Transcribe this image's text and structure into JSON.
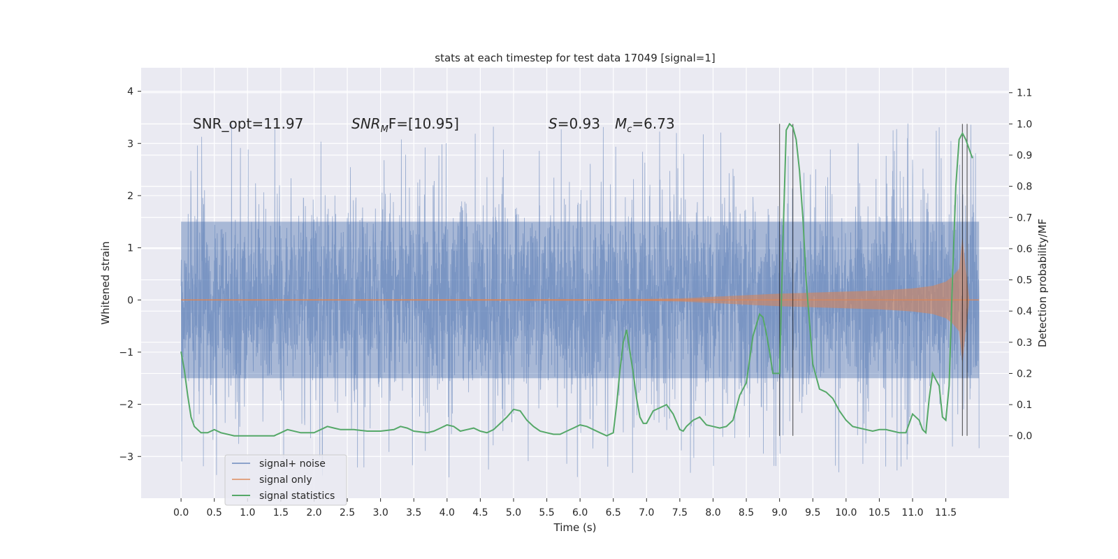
{
  "chart_data": {
    "type": "line",
    "title": "stats at each timestep for test data 17049 [signal=1]",
    "xlabel": "Time (s)",
    "ylabel": "Whitened strain",
    "ylabel_right": "Detection probability/MF",
    "xlim": [
      -0.6,
      12.45
    ],
    "ylim": [
      -3.8,
      4.45
    ],
    "ylim_right": [
      -0.2,
      1.18
    ],
    "x_ticks": [
      0.0,
      0.5,
      1.0,
      1.5,
      2.0,
      2.5,
      3.0,
      3.5,
      4.0,
      4.5,
      5.0,
      5.5,
      6.0,
      6.5,
      7.0,
      7.5,
      8.0,
      8.5,
      9.0,
      9.5,
      10.0,
      10.5,
      11.0,
      11.5
    ],
    "x_tick_labels": [
      "0.0",
      "0.5",
      "1.0",
      "1.5",
      "2.0",
      "2.5",
      "3.0",
      "3.5",
      "4.0",
      "4.5",
      "5.0",
      "5.5",
      "6.0",
      "6.5",
      "7.0",
      "7.5",
      "8.0",
      "8.5",
      "9.0",
      "9.5",
      "10.0",
      "10.5",
      "11.0",
      "11.5"
    ],
    "y_ticks": [
      -3,
      -2,
      -1,
      0,
      1,
      2,
      3,
      4
    ],
    "y_tick_labels": [
      "−3",
      "−2",
      "−1",
      "0",
      "1",
      "2",
      "3",
      "4"
    ],
    "y_ticks_right": [
      0.0,
      0.1,
      0.2,
      0.3,
      0.4,
      0.5,
      0.6,
      0.7,
      0.8,
      0.9,
      1.0,
      1.1
    ],
    "y_tick_labels_right": [
      "0.0",
      "0.1",
      "0.2",
      "0.3",
      "0.4",
      "0.5",
      "0.6",
      "0.7",
      "0.8",
      "0.9",
      "1.0",
      "1.1"
    ],
    "grid": true,
    "legend_position": "lower-left",
    "annotations": [
      {
        "text": "SNR_opt=11.97",
        "x": 0.2,
        "y": 3.3
      },
      {
        "text": "SNR",
        "sub": "M",
        "text_after": "F=[10.95]",
        "italic": true,
        "x": 2.6,
        "y": 3.3
      },
      {
        "text": "S",
        "text_after": "=0.93",
        "italic": true,
        "x": 5.6,
        "y": 3.3
      },
      {
        "text": "M",
        "sub": "c",
        "text_after": "=6.73",
        "italic": true,
        "x": 6.6,
        "y": 3.3
      }
    ],
    "series": [
      {
        "name": "signal+ noise",
        "color": "#4c72b0",
        "axis": "left",
        "description_env": {
          "t_range": [
            0.0,
            12.0
          ],
          "core_amplitude": 1.5,
          "spike_max": 4.1,
          "spike_min": -3.4
        }
      },
      {
        "name": "signal only",
        "color": "#dd8452",
        "axis": "left",
        "envelope": {
          "t": [
            0.0,
            6.0,
            7.0,
            7.5,
            8.0,
            8.5,
            9.0,
            9.5,
            10.0,
            10.5,
            11.0,
            11.3,
            11.5,
            11.6,
            11.7,
            11.75,
            11.8,
            11.85
          ],
          "amp": [
            0.01,
            0.015,
            0.02,
            0.03,
            0.06,
            0.09,
            0.12,
            0.14,
            0.16,
            0.18,
            0.22,
            0.27,
            0.35,
            0.45,
            0.6,
            1.2,
            0.6,
            0.05
          ]
        }
      },
      {
        "name": "signal statistics",
        "color": "#55a868",
        "axis": "right",
        "x": [
          0.0,
          0.05,
          0.1,
          0.15,
          0.2,
          0.3,
          0.4,
          0.5,
          0.6,
          0.8,
          1.0,
          1.2,
          1.4,
          1.5,
          1.6,
          1.8,
          2.0,
          2.1,
          2.2,
          2.3,
          2.4,
          2.5,
          2.6,
          2.8,
          3.0,
          3.2,
          3.3,
          3.4,
          3.5,
          3.7,
          3.8,
          3.9,
          4.0,
          4.1,
          4.2,
          4.3,
          4.4,
          4.5,
          4.6,
          4.7,
          4.8,
          4.9,
          5.0,
          5.1,
          5.2,
          5.3,
          5.4,
          5.5,
          5.6,
          5.7,
          5.8,
          5.9,
          6.0,
          6.1,
          6.2,
          6.3,
          6.4,
          6.5,
          6.55,
          6.6,
          6.65,
          6.7,
          6.75,
          6.8,
          6.85,
          6.9,
          6.95,
          7.0,
          7.1,
          7.2,
          7.3,
          7.4,
          7.5,
          7.55,
          7.6,
          7.7,
          7.8,
          7.9,
          8.0,
          8.1,
          8.2,
          8.3,
          8.4,
          8.5,
          8.6,
          8.7,
          8.75,
          8.8,
          8.85,
          8.9,
          9.0,
          9.05,
          9.1,
          9.15,
          9.2,
          9.25,
          9.3,
          9.35,
          9.4,
          9.5,
          9.6,
          9.7,
          9.8,
          9.9,
          10.0,
          10.1,
          10.2,
          10.3,
          10.4,
          10.5,
          10.6,
          10.7,
          10.8,
          10.9,
          11.0,
          11.1,
          11.15,
          11.2,
          11.25,
          11.3,
          11.4,
          11.45,
          11.5,
          11.55,
          11.6,
          11.65,
          11.7,
          11.75,
          11.8,
          11.85,
          11.9
        ],
        "y": [
          0.27,
          0.21,
          0.13,
          0.06,
          0.03,
          0.01,
          0.01,
          0.02,
          0.01,
          0.0,
          0.0,
          0.0,
          0.0,
          0.01,
          0.02,
          0.01,
          0.01,
          0.02,
          0.03,
          0.025,
          0.02,
          0.02,
          0.02,
          0.015,
          0.015,
          0.02,
          0.03,
          0.025,
          0.015,
          0.01,
          0.015,
          0.025,
          0.035,
          0.03,
          0.015,
          0.02,
          0.025,
          0.015,
          0.01,
          0.02,
          0.04,
          0.06,
          0.085,
          0.08,
          0.05,
          0.03,
          0.015,
          0.01,
          0.005,
          0.005,
          0.015,
          0.025,
          0.035,
          0.03,
          0.02,
          0.01,
          0.0,
          0.01,
          0.1,
          0.21,
          0.3,
          0.34,
          0.27,
          0.2,
          0.12,
          0.06,
          0.04,
          0.04,
          0.08,
          0.09,
          0.1,
          0.07,
          0.02,
          0.015,
          0.03,
          0.05,
          0.06,
          0.035,
          0.03,
          0.025,
          0.03,
          0.05,
          0.13,
          0.17,
          0.32,
          0.39,
          0.38,
          0.33,
          0.27,
          0.2,
          0.2,
          0.62,
          0.98,
          1.0,
          0.99,
          0.95,
          0.85,
          0.7,
          0.5,
          0.23,
          0.15,
          0.14,
          0.12,
          0.08,
          0.05,
          0.03,
          0.025,
          0.02,
          0.015,
          0.02,
          0.02,
          0.015,
          0.01,
          0.01,
          0.07,
          0.05,
          0.02,
          0.01,
          0.12,
          0.2,
          0.16,
          0.06,
          0.05,
          0.16,
          0.5,
          0.8,
          0.95,
          0.97,
          0.95,
          0.92,
          0.89
        ]
      }
    ],
    "vertical_lines": {
      "color": "#000000",
      "x": [
        9.0,
        9.2,
        11.75,
        11.82
      ],
      "y_range_right": [
        0.0,
        1.0
      ]
    }
  }
}
